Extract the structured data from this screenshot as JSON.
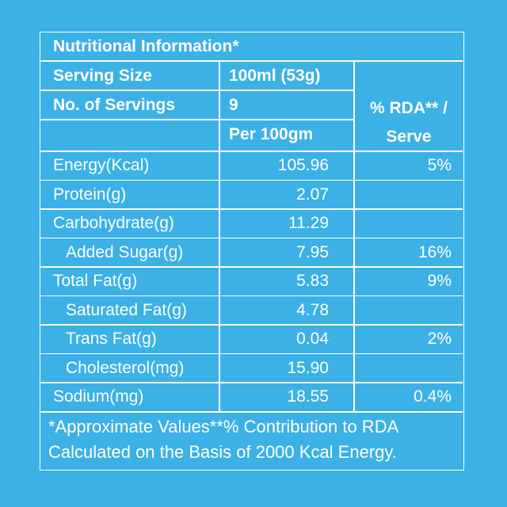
{
  "panel": {
    "title": "Nutritional Information*",
    "serving_size_label": "Serving Size",
    "serving_size_value": "100ml (53g)",
    "servings_label": "No. of Servings",
    "servings_value": "9",
    "per_label": "Per 100gm",
    "rda_header_line1": "% RDA** /",
    "rda_header_line2": "Serve"
  },
  "nutrients": [
    {
      "name": "Energy(Kcal)",
      "value": "105.96",
      "rda": "5%",
      "indent": false
    },
    {
      "name": "Protein(g)",
      "value": "2.07",
      "rda": "",
      "indent": false
    },
    {
      "name": "Carbohydrate(g)",
      "value": "11.29",
      "rda": "",
      "indent": false
    },
    {
      "name": "Added Sugar(g)",
      "value": "7.95",
      "rda": "16%",
      "indent": true
    },
    {
      "name": "Total Fat(g)",
      "value": "5.83",
      "rda": "9%",
      "indent": false
    },
    {
      "name": "Saturated Fat(g)",
      "value": "4.78",
      "rda": "",
      "indent": true
    },
    {
      "name": "Trans Fat(g)",
      "value": "0.04",
      "rda": "2%",
      "indent": true
    },
    {
      "name": "Cholesterol(mg)",
      "value": "15.90",
      "rda": "",
      "indent": true
    },
    {
      "name": "Sodium(mg)",
      "value": "18.55",
      "rda": "0.4%",
      "indent": false
    }
  ],
  "footer": {
    "line1": "*Approximate Values**% Contribution to RDA",
    "line2": "Calculated on the Basis of 2000 Kcal Energy."
  },
  "colors": {
    "background": "#3bb1e6",
    "foreground": "#ffffff"
  }
}
